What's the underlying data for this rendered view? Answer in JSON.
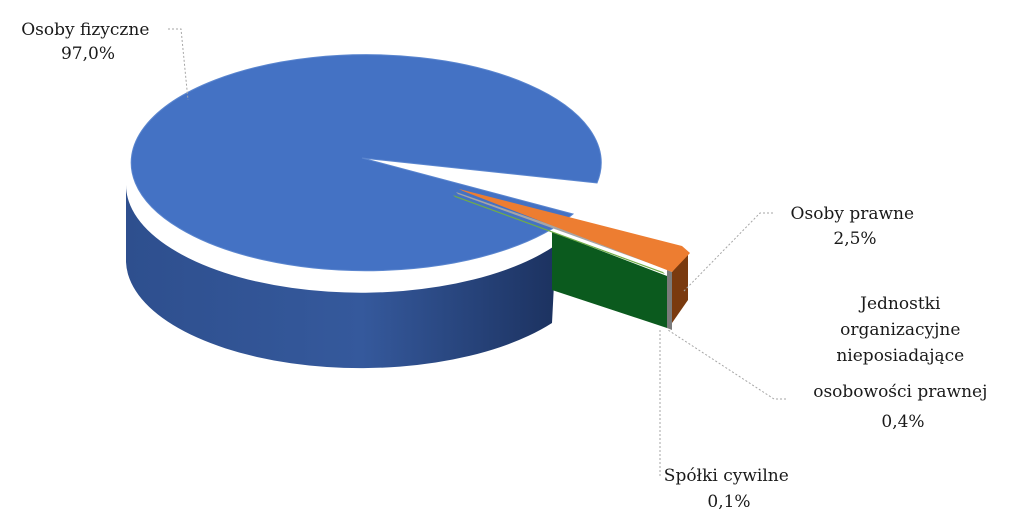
{
  "chart_data": {
    "type": "pie",
    "title": "",
    "slices": [
      {
        "label": "Osoby fizyczne",
        "value": 97.0,
        "value_label": "97,0%",
        "color": "#4472C4"
      },
      {
        "label": "Osoby prawne",
        "value": 2.5,
        "value_label": "2,5%",
        "color": "#ED7D31"
      },
      {
        "label": "Jednostki organizacyjne nieposiadające osobowości prawnej",
        "value": 0.4,
        "value_label": "0,4%",
        "color": "#A5A5A5"
      },
      {
        "label": "Spółki cywilne",
        "value": 0.1,
        "value_label": "0,1%",
        "color": "#70AD47"
      }
    ],
    "style": "3d-exploded",
    "legend": "none"
  }
}
